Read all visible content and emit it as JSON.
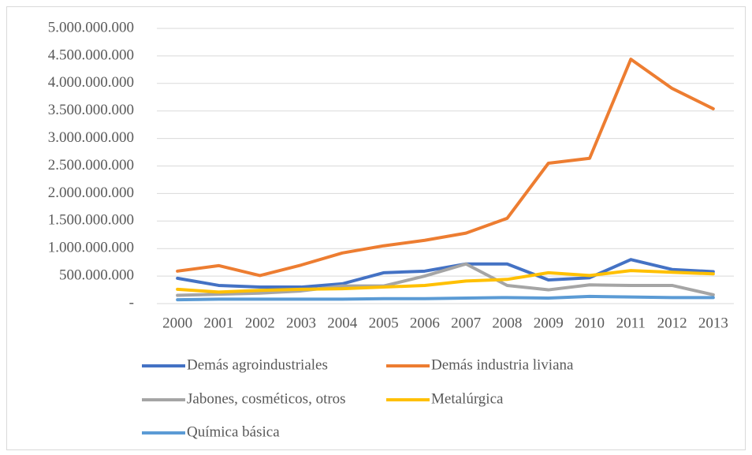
{
  "chart_data": {
    "type": "line",
    "categories": [
      "2000",
      "2001",
      "2002",
      "2003",
      "2004",
      "2005",
      "2006",
      "2007",
      "2008",
      "2009",
      "2010",
      "2011",
      "2012",
      "2013"
    ],
    "series": [
      {
        "name": "Demás agroindustriales",
        "color": "#4472c4",
        "values": [
          460000000,
          330000000,
          300000000,
          300000000,
          360000000,
          560000000,
          590000000,
          720000000,
          720000000,
          430000000,
          470000000,
          800000000,
          620000000,
          580000000
        ]
      },
      {
        "name": "Demás industria liviana",
        "color": "#ed7d31",
        "values": [
          590000000,
          690000000,
          510000000,
          700000000,
          920000000,
          1050000000,
          1150000000,
          1280000000,
          1550000000,
          2550000000,
          2640000000,
          4440000000,
          3910000000,
          3540000000
        ]
      },
      {
        "name": "Jabones, cosméticos, otros",
        "color": "#a5a5a5",
        "values": [
          150000000,
          170000000,
          190000000,
          230000000,
          320000000,
          320000000,
          500000000,
          720000000,
          330000000,
          250000000,
          340000000,
          330000000,
          330000000,
          160000000
        ]
      },
      {
        "name": "Metalúrgica",
        "color": "#ffc000",
        "values": [
          260000000,
          210000000,
          240000000,
          260000000,
          270000000,
          300000000,
          330000000,
          410000000,
          440000000,
          560000000,
          510000000,
          600000000,
          570000000,
          540000000
        ]
      },
      {
        "name": "Química básica",
        "color": "#5b9bd5",
        "values": [
          70000000,
          80000000,
          80000000,
          80000000,
          80000000,
          90000000,
          90000000,
          100000000,
          110000000,
          100000000,
          130000000,
          120000000,
          110000000,
          110000000
        ]
      }
    ],
    "ylim": [
      0,
      5000000000
    ],
    "yticks": [
      {
        "value": 0,
        "label": "-"
      },
      {
        "value": 500000000,
        "label": "500.000.000"
      },
      {
        "value": 1000000000,
        "label": "1.000.000.000"
      },
      {
        "value": 1500000000,
        "label": "1.500.000.000"
      },
      {
        "value": 2000000000,
        "label": "2.000.000.000"
      },
      {
        "value": 2500000000,
        "label": "2.500.000.000"
      },
      {
        "value": 3000000000,
        "label": "3.000.000.000"
      },
      {
        "value": 3500000000,
        "label": "3.500.000.000"
      },
      {
        "value": 4000000000,
        "label": "4.000.000.000"
      },
      {
        "value": 4500000000,
        "label": "4.500.000.000"
      },
      {
        "value": 5000000000,
        "label": "5.000.000.000"
      }
    ],
    "grid": true,
    "legend": "bottom"
  }
}
